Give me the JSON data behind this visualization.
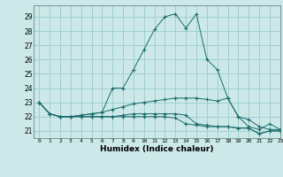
{
  "xlabel": "Humidex (Indice chaleur)",
  "background_color": "#cce8e8",
  "grid_color": "#99cccc",
  "line_color": "#1a6b6b",
  "xlim": [
    -0.5,
    23
  ],
  "ylim": [
    20.5,
    29.8
  ],
  "yticks": [
    21,
    22,
    23,
    24,
    25,
    26,
    27,
    28,
    29
  ],
  "xticks": [
    0,
    1,
    2,
    3,
    4,
    5,
    6,
    7,
    8,
    9,
    10,
    11,
    12,
    13,
    14,
    15,
    16,
    17,
    18,
    19,
    20,
    21,
    22,
    23
  ],
  "series": [
    [
      23.0,
      22.2,
      22.0,
      22.0,
      22.1,
      22.2,
      22.3,
      24.0,
      24.0,
      25.3,
      26.7,
      28.1,
      29.0,
      29.2,
      28.2,
      29.2,
      26.0,
      25.3,
      23.3,
      22.0,
      21.3,
      21.1,
      21.5,
      21.1
    ],
    [
      23.0,
      22.2,
      22.0,
      22.0,
      22.1,
      22.2,
      22.3,
      22.5,
      22.7,
      22.9,
      23.0,
      23.1,
      23.2,
      23.3,
      23.3,
      23.3,
      23.2,
      23.1,
      23.3,
      22.0,
      21.8,
      21.3,
      21.1,
      21.1
    ],
    [
      23.0,
      22.2,
      22.0,
      22.0,
      22.0,
      22.0,
      22.0,
      22.0,
      22.1,
      22.2,
      22.2,
      22.2,
      22.2,
      22.2,
      22.1,
      21.5,
      21.4,
      21.3,
      21.3,
      21.2,
      21.2,
      20.8,
      21.0,
      21.0
    ],
    [
      23.0,
      22.2,
      22.0,
      22.0,
      22.0,
      22.0,
      22.0,
      22.0,
      22.0,
      22.0,
      22.0,
      22.0,
      22.0,
      21.9,
      21.5,
      21.4,
      21.3,
      21.3,
      21.3,
      21.2,
      21.2,
      20.8,
      21.0,
      21.0
    ]
  ]
}
